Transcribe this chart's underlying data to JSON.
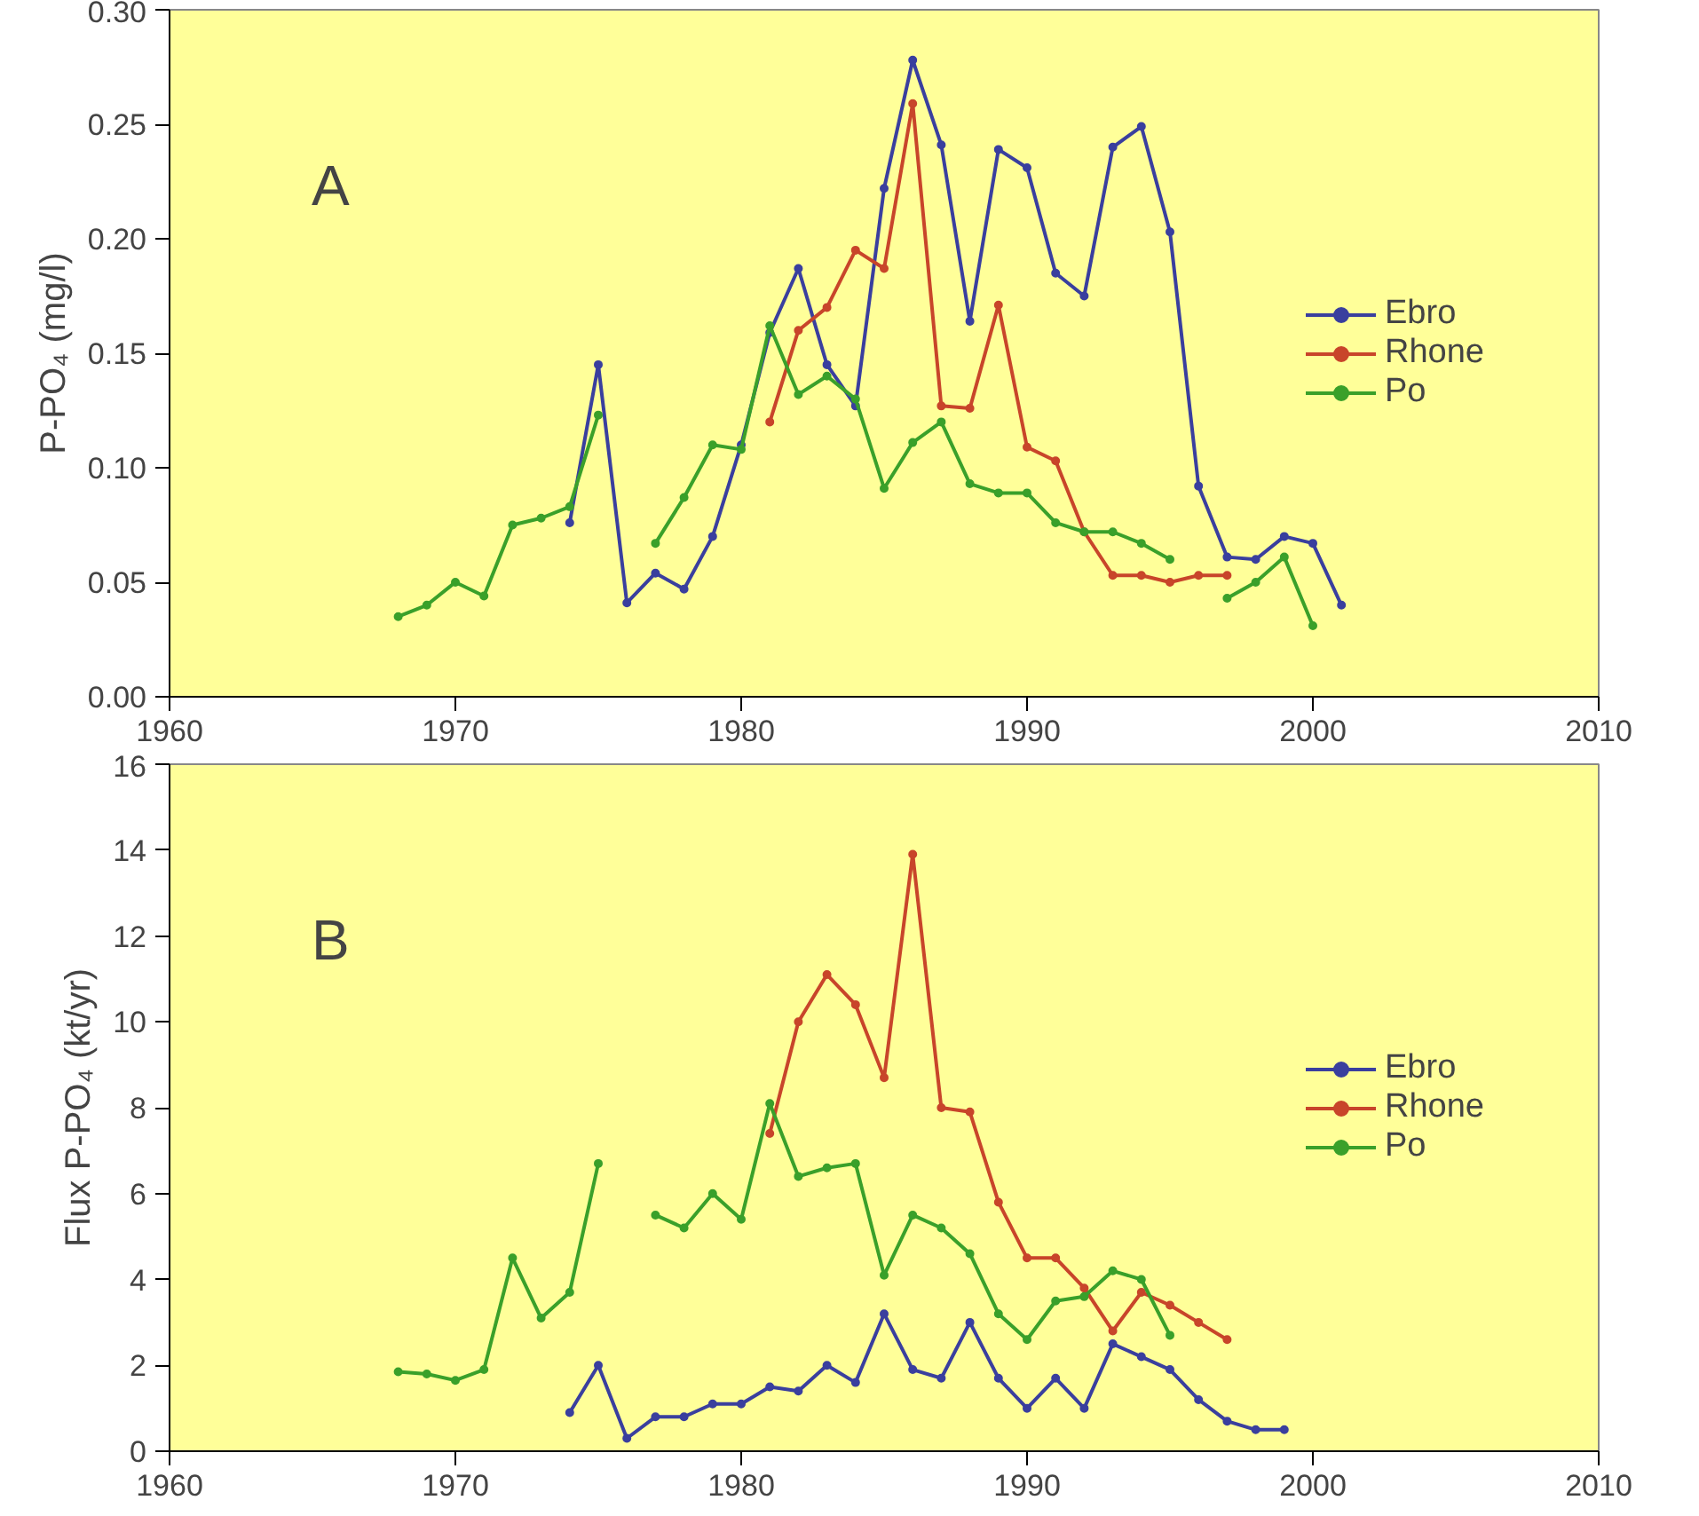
{
  "chart_data": [
    {
      "type": "line",
      "ylabel": "P-PO₄ (mg/l)",
      "annotations": [
        "A"
      ],
      "xlim": [
        1960,
        2010
      ],
      "xticks": [
        1960,
        1970,
        1980,
        1990,
        2000,
        2010
      ],
      "ylim": [
        0,
        0.3
      ],
      "yticks": [
        {
          "value": 0,
          "label": "0.00"
        },
        {
          "value": 0.05,
          "label": "0.05"
        },
        {
          "value": 0.1,
          "label": "0.10"
        },
        {
          "value": 0.15,
          "label": "0.15"
        },
        {
          "value": 0.2,
          "label": "0.20"
        },
        {
          "value": 0.25,
          "label": "0.25"
        },
        {
          "value": 0.3,
          "label": "0.30"
        }
      ],
      "grid": false,
      "legend": "right",
      "marker": "circle",
      "line_style": "solid",
      "series": [
        {
          "name": "Ebro",
          "color": "#3a3f9e",
          "x": [
            1974,
            1975,
            1976,
            1977,
            1978,
            1979,
            1980,
            1981,
            1982,
            1983,
            1984,
            1985,
            1986,
            1987,
            1988,
            1989,
            1990,
            1991,
            1992,
            1993,
            1994,
            1995,
            1996,
            1997,
            1998,
            1999,
            2000,
            2001
          ],
          "values": [
            0.076,
            0.145,
            0.041,
            0.054,
            0.047,
            0.07,
            0.11,
            0.159,
            0.187,
            0.145,
            0.127,
            0.222,
            0.278,
            0.241,
            0.164,
            0.239,
            0.231,
            0.185,
            0.175,
            0.24,
            0.249,
            0.203,
            0.092,
            0.061,
            0.06,
            0.07,
            0.067,
            0.04
          ]
        },
        {
          "name": "Rhone",
          "color": "#c8452a",
          "x": [
            1981,
            1982,
            1983,
            1984,
            1985,
            1986,
            1987,
            1988,
            1989,
            1990,
            1991,
            1992,
            1993,
            1994,
            1995,
            1996,
            1997
          ],
          "values": [
            0.12,
            0.16,
            0.17,
            0.195,
            0.187,
            0.259,
            0.127,
            0.126,
            0.171,
            0.109,
            0.103,
            0.072,
            0.053,
            0.053,
            0.05,
            0.053,
            0.053
          ]
        },
        {
          "name": "Po",
          "color": "#3aa02a",
          "x": [
            1968,
            1969,
            1970,
            1971,
            1972,
            1973,
            1974,
            1975,
            1976,
            1977,
            1978,
            1979,
            1980,
            1981,
            1982,
            1983,
            1984,
            1985,
            1986,
            1987,
            1988,
            1989,
            1990,
            1991,
            1992,
            1993,
            1994,
            1995,
            1996,
            1997,
            1998,
            1999,
            2000
          ],
          "values": [
            0.035,
            0.04,
            0.05,
            0.044,
            0.075,
            0.078,
            0.083,
            0.123,
            null,
            0.067,
            0.087,
            0.11,
            0.108,
            0.162,
            0.132,
            0.14,
            0.13,
            0.091,
            0.111,
            0.12,
            0.093,
            0.089,
            0.089,
            0.076,
            0.072,
            0.072,
            0.067,
            0.06,
            null,
            0.043,
            0.05,
            0.061,
            0.031
          ]
        }
      ]
    },
    {
      "type": "line",
      "ylabel": "Flux P-PO₄ (kt/yr)",
      "annotations": [
        "B"
      ],
      "xlim": [
        1960,
        2010
      ],
      "xticks": [
        1960,
        1970,
        1980,
        1990,
        2000,
        2010
      ],
      "ylim": [
        0,
        16
      ],
      "yticks": [
        0,
        2,
        4,
        6,
        8,
        10,
        12,
        14,
        16
      ],
      "grid": false,
      "legend": "right",
      "marker": "circle",
      "line_style": "solid",
      "series": [
        {
          "name": "Ebro",
          "color": "#3a3f9e",
          "x": [
            1974,
            1975,
            1976,
            1977,
            1978,
            1979,
            1980,
            1981,
            1982,
            1983,
            1984,
            1985,
            1986,
            1987,
            1988,
            1989,
            1990,
            1991,
            1992,
            1993,
            1994,
            1995,
            1996,
            1997,
            1998,
            1999
          ],
          "values": [
            0.9,
            2.0,
            0.3,
            0.8,
            0.8,
            1.1,
            1.1,
            1.5,
            1.4,
            2.0,
            1.6,
            3.2,
            1.9,
            1.7,
            3.0,
            1.7,
            1.0,
            1.7,
            1.0,
            2.5,
            2.2,
            1.9,
            1.2,
            0.7,
            0.5,
            0.5
          ]
        },
        {
          "name": "Rhone",
          "color": "#c8452a",
          "x": [
            1981,
            1982,
            1983,
            1984,
            1985,
            1986,
            1987,
            1988,
            1989,
            1990,
            1991,
            1992,
            1993,
            1994,
            1995,
            1996,
            1997
          ],
          "values": [
            7.4,
            10.0,
            11.1,
            10.4,
            8.7,
            13.9,
            8.0,
            7.9,
            5.8,
            4.5,
            4.5,
            3.8,
            2.8,
            3.7,
            3.4,
            3.0,
            2.6
          ]
        },
        {
          "name": "Po",
          "color": "#3aa02a",
          "x": [
            1968,
            1969,
            1970,
            1971,
            1972,
            1973,
            1974,
            1975,
            1976,
            1977,
            1978,
            1979,
            1980,
            1981,
            1982,
            1983,
            1984,
            1985,
            1986,
            1987,
            1988,
            1989,
            1990,
            1991,
            1992,
            1993,
            1994,
            1995
          ],
          "values": [
            1.85,
            1.8,
            1.65,
            1.9,
            4.5,
            3.1,
            3.7,
            6.7,
            null,
            5.5,
            5.2,
            6.0,
            5.4,
            8.1,
            6.4,
            6.6,
            6.7,
            4.1,
            5.5,
            5.2,
            4.6,
            3.2,
            2.6,
            3.5,
            3.6,
            4.2,
            4.0,
            2.7
          ]
        }
      ]
    }
  ]
}
